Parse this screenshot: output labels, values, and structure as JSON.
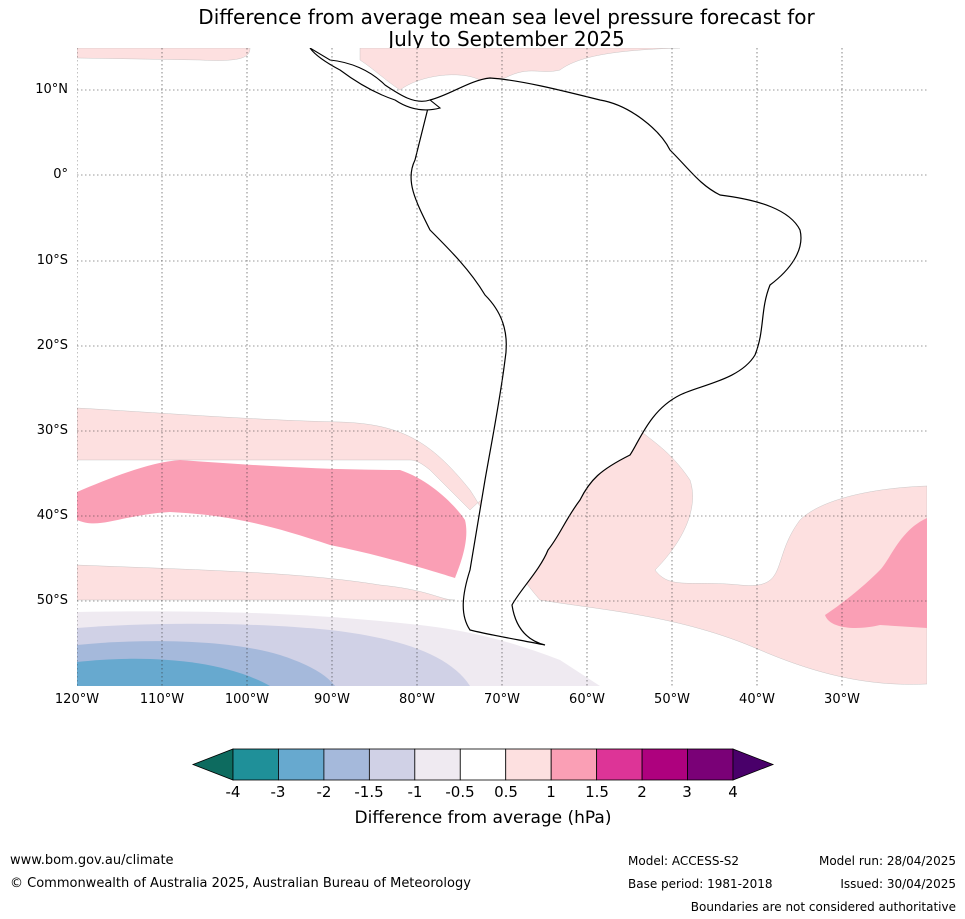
{
  "title": {
    "line1": "Difference from average mean sea level pressure forecast for",
    "line2": "July to September 2025"
  },
  "map": {
    "lat_labels": [
      "10°N",
      "0°",
      "10°S",
      "20°S",
      "30°S",
      "40°S",
      "50°S"
    ],
    "lon_labels": [
      "120°W",
      "110°W",
      "100°W",
      "90°W",
      "80°W",
      "70°W",
      "60°W",
      "50°W",
      "40°W",
      "30°W"
    ]
  },
  "colorbar": {
    "label": "Difference from average (hPa)",
    "ticks": [
      "-4",
      "-3",
      "-2",
      "-1.5",
      "-1",
      "-0.5",
      "0.5",
      "1",
      "1.5",
      "2",
      "3",
      "4"
    ],
    "colors": [
      "#0d6b5f",
      "#1f9099",
      "#67a9cf",
      "#a5b9db",
      "#d0d1e6",
      "#efeaf1",
      "#ffffff",
      "#fde0e0",
      "#fa9fb5",
      "#dd3497",
      "#ae017e",
      "#7a0177",
      "#49006a"
    ]
  },
  "footer": {
    "url": "www.bom.gov.au/climate",
    "copyright": "© Commonwealth of Australia 2025, Australian Bureau of Meteorology",
    "model": "Model: ACCESS-S2",
    "base_period": "Base period: 1981-2018",
    "model_run": "Model run: 28/04/2025",
    "issued": "Issued: 30/04/2025",
    "disclaimer": "Boundaries are not considered authoritative"
  }
}
